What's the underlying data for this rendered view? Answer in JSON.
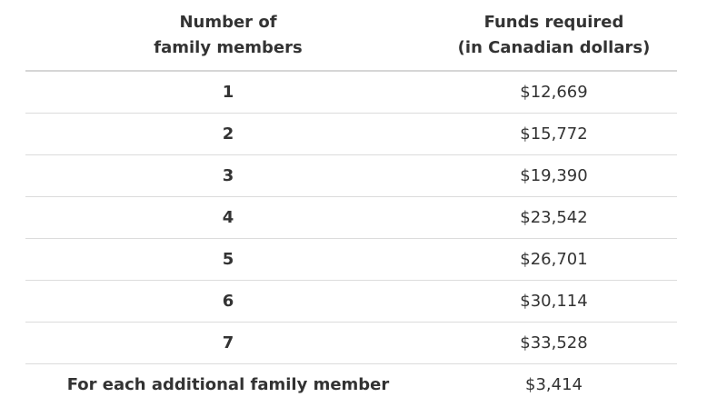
{
  "table": {
    "headers": [
      {
        "lines": [
          "Number of",
          "family members"
        ]
      },
      {
        "lines": [
          "Funds required",
          "(in Canadian dollars)"
        ]
      }
    ],
    "rows": [
      {
        "members": "1",
        "funds": "$12,669"
      },
      {
        "members": "2",
        "funds": "$15,772"
      },
      {
        "members": "3",
        "funds": "$19,390"
      },
      {
        "members": "4",
        "funds": "$23,542"
      },
      {
        "members": "5",
        "funds": "$26,701"
      },
      {
        "members": "6",
        "funds": "$30,114"
      },
      {
        "members": "7",
        "funds": "$33,528"
      },
      {
        "members": "For each additional family member",
        "funds": "$3,414"
      }
    ]
  },
  "colors": {
    "text": "#333333",
    "rule": "#dcdcdc",
    "background": "#ffffff"
  }
}
